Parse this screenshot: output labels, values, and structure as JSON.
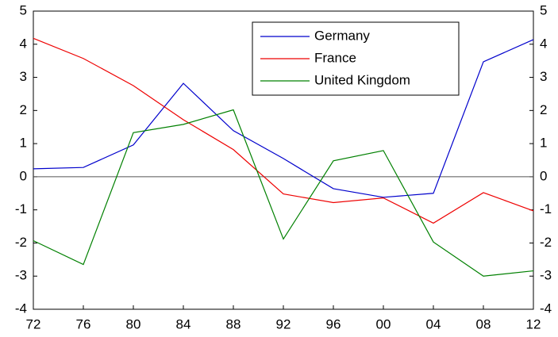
{
  "chart_data": {
    "type": "line",
    "categories": [
      "72",
      "76",
      "80",
      "84",
      "88",
      "92",
      "96",
      "00",
      "04",
      "08",
      "12"
    ],
    "series": [
      {
        "name": "Germany",
        "color": "#0000cc",
        "values": [
          0.24,
          0.28,
          0.96,
          2.82,
          1.39,
          0.55,
          -0.36,
          -0.62,
          -0.5,
          3.47,
          4.14
        ]
      },
      {
        "name": "France",
        "color": "#ee0000",
        "values": [
          4.18,
          3.57,
          2.75,
          1.72,
          0.82,
          -0.52,
          -0.78,
          -0.64,
          -1.4,
          -0.48,
          -1.03
        ]
      },
      {
        "name": "United Kingdom",
        "color": "#008000",
        "values": [
          -1.93,
          -2.65,
          1.33,
          1.58,
          2.02,
          -1.88,
          0.48,
          0.79,
          -1.97,
          -3.0,
          -2.84
        ]
      }
    ],
    "ylim": [
      -4,
      5
    ],
    "yticks": [
      -4,
      -3,
      -2,
      -1,
      0,
      1,
      2,
      3,
      4,
      5
    ],
    "legend": "top-right"
  }
}
